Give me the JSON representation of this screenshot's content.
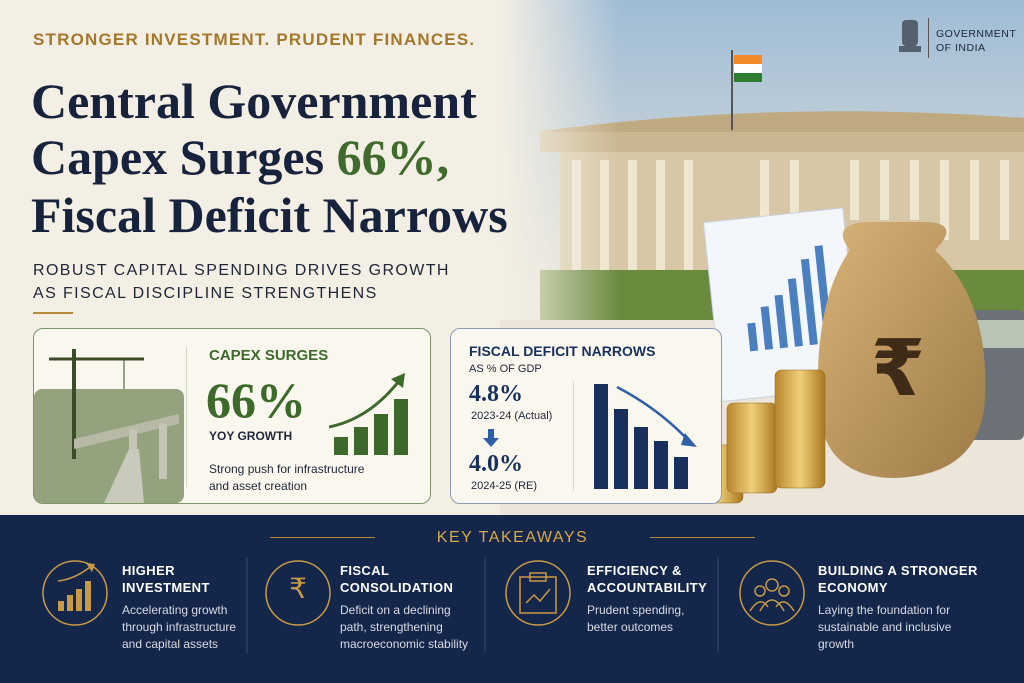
{
  "kicker": "STRONGER INVESTMENT. PRUDENT FINANCES.",
  "title": {
    "line1": "Central Government",
    "line2": "Capex Surges",
    "highlight": "66%,",
    "line3": "Fiscal Deficit Narrows"
  },
  "subtitle": [
    "ROBUST CAPITAL SPENDING DRIVES GROWTH",
    "AS FISCAL DISCIPLINE STRENGTHENS"
  ],
  "emblem": {
    "lines": [
      "GOVERNMENT",
      "OF INDIA"
    ]
  },
  "currency_symbol": "₹",
  "capex_card": {
    "heading": "CAPEX SURGES",
    "figure": "66%",
    "figure_label": "YOY GROWTH",
    "note": [
      "Strong push for infrastructure",
      "and asset creation"
    ]
  },
  "deficit_card": {
    "heading": "FISCAL DEFICIT NARROWS",
    "subheading": "AS % OF GDP",
    "from": {
      "value": "4.8%",
      "period": "2023-24 (Actual)"
    },
    "to": {
      "value": "4.0%",
      "period": "2024-25 (RE)"
    }
  },
  "takeaways": {
    "title": "KEY TAKEAWAYS",
    "items": [
      {
        "title": [
          "HIGHER",
          "INVESTMENT"
        ],
        "text": [
          "Accelerating growth",
          "through infrastructure",
          "and capital assets"
        ]
      },
      {
        "title": [
          "FISCAL",
          "CONSOLIDATION"
        ],
        "text": [
          "Deficit on a declining",
          "path, strengthening",
          "macroeconomic stability"
        ]
      },
      {
        "title": [
          "EFFICIENCY &",
          "ACCOUNTABILITY"
        ],
        "text": [
          "Prudent spending,",
          "better outcomes"
        ]
      },
      {
        "title": [
          "BUILDING A STRONGER",
          "ECONOMY"
        ],
        "text": [
          "Laying the foundation for",
          "sustainable and inclusive",
          "growth"
        ]
      }
    ]
  }
}
